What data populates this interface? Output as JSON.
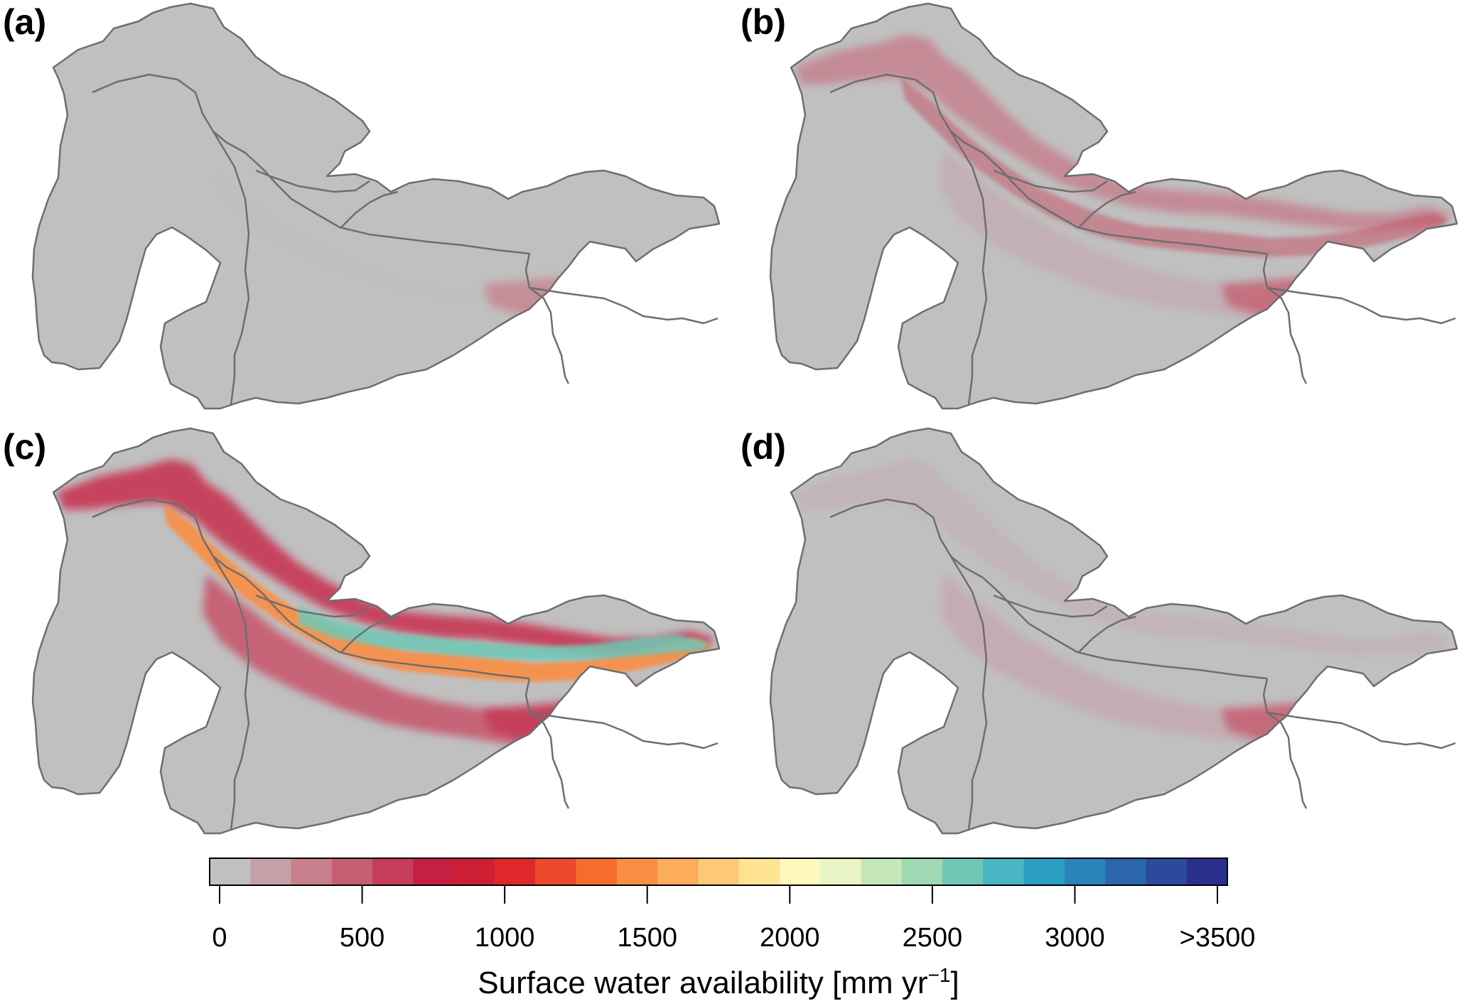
{
  "panels": [
    {
      "id": "a",
      "label": "(a)",
      "intensity": 0.14
    },
    {
      "id": "b",
      "label": "(b)",
      "intensity": 0.34
    },
    {
      "id": "c",
      "label": "(c)",
      "intensity": 1.0
    },
    {
      "id": "d",
      "label": "(d)",
      "intensity": 0.18
    }
  ],
  "colorbar": {
    "title": "Surface water availability [mm yr",
    "title_superscript": "−1",
    "title_suffix": "]",
    "min": 0,
    "max": 3500,
    "tick_values": [
      0,
      500,
      1000,
      1500,
      2000,
      2500,
      3000,
      3500
    ],
    "tick_labels": [
      "0",
      "500",
      "1000",
      "1500",
      "2000",
      "2500",
      "3000",
      ">3500"
    ],
    "colors": [
      "#c0c0c0",
      "#c6a0a8",
      "#c77f8c",
      "#c65e72",
      "#c63d59",
      "#c51f44",
      "#cd1f33",
      "#e0282a",
      "#ea4a2b",
      "#f46d2d",
      "#f98e43",
      "#fcac5a",
      "#fdc977",
      "#fee392",
      "#fff7bc",
      "#e9f5c4",
      "#c5e8b9",
      "#9fd8b3",
      "#6ec8b5",
      "#48b6c3",
      "#2c9fc4",
      "#2b83bb",
      "#2b66ad",
      "#2b4a9b",
      "#2a2f8c"
    ]
  },
  "colors": {
    "background_land": "#c0c0c0",
    "boundary": "#6e6e6e"
  }
}
